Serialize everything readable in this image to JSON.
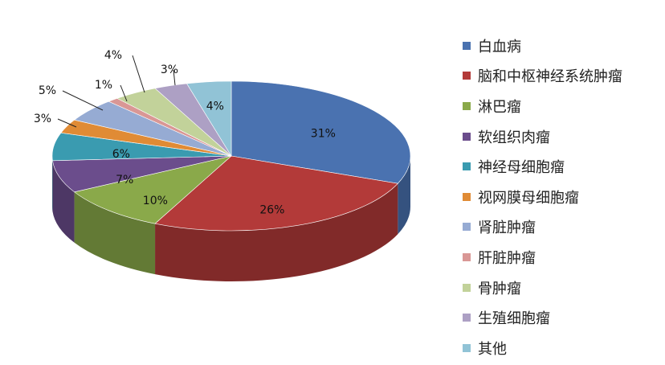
{
  "chart_data": {
    "type": "pie",
    "categories": [
      "白血病",
      "脑和中枢神经系统肿瘤",
      "淋巴瘤",
      "软组织肉瘤",
      "神经母细胞瘤",
      "视网膜母细胞瘤",
      "肾脏肿瘤",
      "肝脏肿瘤",
      "骨肿瘤",
      "生殖细胞瘤",
      "其他"
    ],
    "values": [
      31,
      26,
      10,
      7,
      6,
      3,
      5,
      1,
      4,
      3,
      4
    ],
    "data_labels": [
      "31%",
      "26%",
      "10%",
      "7%",
      "6%",
      "3%",
      "5%",
      "1%",
      "4%",
      "3%",
      "4%"
    ],
    "colors": [
      "#4A72B0",
      "#B33A39",
      "#8AA94A",
      "#6B4D8C",
      "#3A9BB0",
      "#E08B35",
      "#96ABD3",
      "#D99795",
      "#C2D29A",
      "#ADA0C4",
      "#91C3D6"
    ],
    "legend_position": "right",
    "style": "3d-pie"
  }
}
